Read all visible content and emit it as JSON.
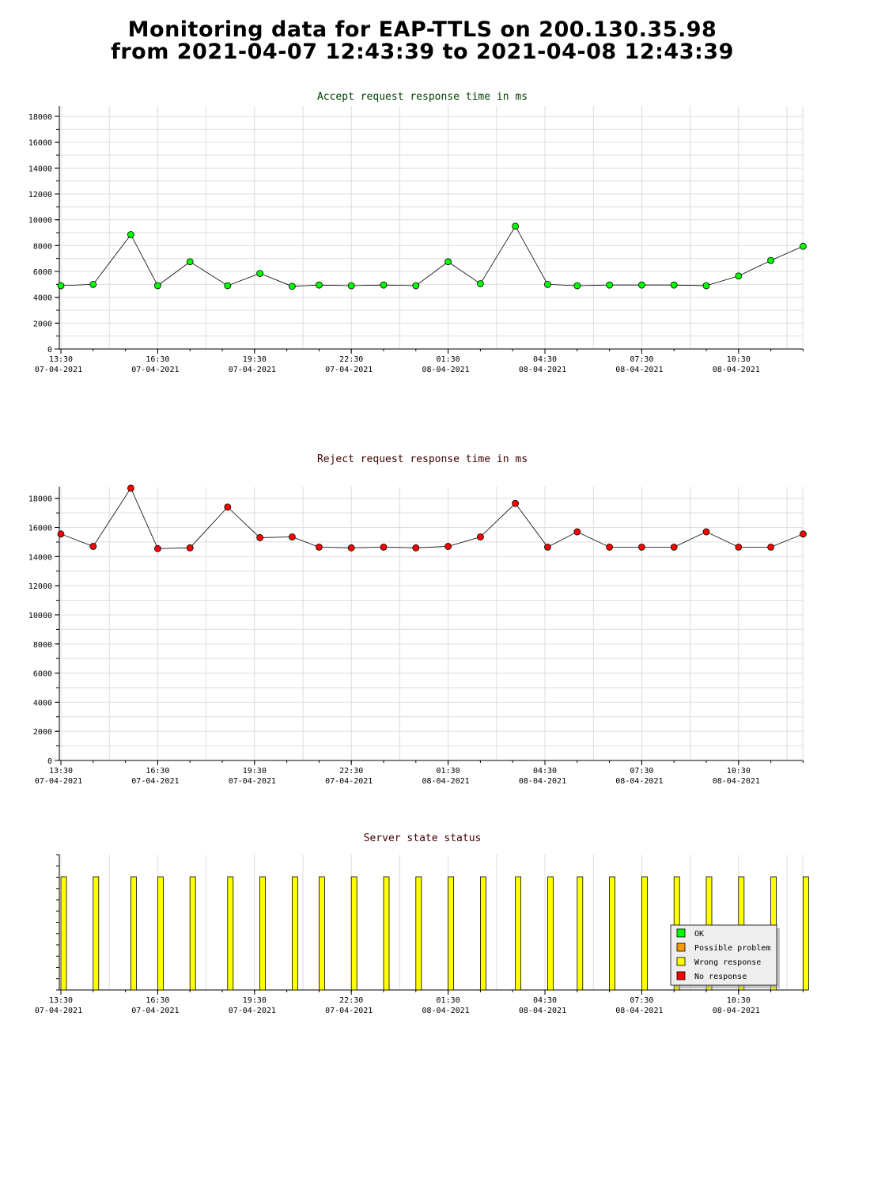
{
  "page": {
    "title_line1": "Monitoring data for EAP-TTLS on 200.130.35.98",
    "title_line2": "from 2021-04-07 12:43:39 to 2021-04-08 12:43:39"
  },
  "colors": {
    "accept_title": "#004000",
    "reject_title": "#400000",
    "status_title": "#400000",
    "accept_marker": "#00ff00",
    "reject_marker": "#ff0000",
    "grid": "#dddddd",
    "ok": "#00ff00",
    "possible_problem": "#ff9900",
    "wrong_response": "#ffff00",
    "no_response": "#ff0000"
  },
  "x_ticks": [
    {
      "time": "13:30",
      "date": "07-04-2021"
    },
    {
      "time": "16:30",
      "date": "07-04-2021"
    },
    {
      "time": "19:30",
      "date": "07-04-2021"
    },
    {
      "time": "22:30",
      "date": "07-04-2021"
    },
    {
      "time": "01:30",
      "date": "08-04-2021"
    },
    {
      "time": "04:30",
      "date": "08-04-2021"
    },
    {
      "time": "07:30",
      "date": "08-04-2021"
    },
    {
      "time": "10:30",
      "date": "08-04-2021"
    }
  ],
  "chart_data": [
    {
      "type": "line",
      "title": "Accept request response time in ms",
      "ylim": [
        0,
        18800
      ],
      "yticks": [
        0,
        2000,
        4000,
        6000,
        8000,
        10000,
        12000,
        14000,
        16000,
        18000
      ],
      "grid": true,
      "x": [
        "2021-04-07 13:30",
        "2021-04-07 14:30",
        "2021-04-07 15:40",
        "2021-04-07 16:30",
        "2021-04-07 17:30",
        "2021-04-07 18:40",
        "2021-04-07 19:40",
        "2021-04-07 20:40",
        "2021-04-07 21:30",
        "2021-04-07 22:30",
        "2021-04-07 23:30",
        "2021-04-08 00:30",
        "2021-04-08 01:30",
        "2021-04-08 02:30",
        "2021-04-08 03:35",
        "2021-04-08 04:35",
        "2021-04-08 05:30",
        "2021-04-08 06:30",
        "2021-04-08 07:30",
        "2021-04-08 08:30",
        "2021-04-08 09:30",
        "2021-04-08 10:30",
        "2021-04-08 11:30",
        "2021-04-08 12:30"
      ],
      "series": [
        {
          "values": [
            4900,
            5000,
            8850,
            4900,
            6750,
            4900,
            5850,
            4850,
            4950,
            4900,
            4950,
            4900,
            6750,
            5050,
            9500,
            5000,
            4900,
            4950,
            4950,
            4950,
            4900,
            5650,
            6850,
            7950
          ]
        }
      ]
    },
    {
      "type": "line",
      "title": "Reject request response time in ms",
      "ylim": [
        0,
        18800
      ],
      "yticks": [
        0,
        2000,
        4000,
        6000,
        8000,
        10000,
        12000,
        14000,
        16000,
        18000
      ],
      "grid": true,
      "x": [
        "2021-04-07 13:30",
        "2021-04-07 14:30",
        "2021-04-07 15:40",
        "2021-04-07 16:30",
        "2021-04-07 17:30",
        "2021-04-07 18:40",
        "2021-04-07 19:40",
        "2021-04-07 20:40",
        "2021-04-07 21:30",
        "2021-04-07 22:30",
        "2021-04-07 23:30",
        "2021-04-08 00:30",
        "2021-04-08 01:30",
        "2021-04-08 02:30",
        "2021-04-08 03:35",
        "2021-04-08 04:35",
        "2021-04-08 05:30",
        "2021-04-08 06:30",
        "2021-04-08 07:30",
        "2021-04-08 08:30",
        "2021-04-08 09:30",
        "2021-04-08 10:30",
        "2021-04-08 11:30",
        "2021-04-08 12:30"
      ],
      "series": [
        {
          "values": [
            15550,
            14700,
            18700,
            14550,
            14600,
            17400,
            15300,
            15350,
            14650,
            14600,
            14650,
            14600,
            14700,
            15350,
            17650,
            14650,
            15700,
            14650,
            14650,
            14650,
            15700,
            14650,
            14650,
            15550
          ]
        }
      ]
    },
    {
      "type": "bar",
      "title": "Server state status",
      "x": [
        "2021-04-07 13:30",
        "2021-04-07 14:30",
        "2021-04-07 15:40",
        "2021-04-07 16:30",
        "2021-04-07 17:30",
        "2021-04-07 18:40",
        "2021-04-07 19:40",
        "2021-04-07 20:40",
        "2021-04-07 21:30",
        "2021-04-07 22:30",
        "2021-04-07 23:30",
        "2021-04-08 00:30",
        "2021-04-08 01:30",
        "2021-04-08 02:30",
        "2021-04-08 03:35",
        "2021-04-08 04:35",
        "2021-04-08 05:30",
        "2021-04-08 06:30",
        "2021-04-08 07:30",
        "2021-04-08 08:30",
        "2021-04-08 09:30",
        "2021-04-08 10:30",
        "2021-04-08 11:30",
        "2021-04-08 12:30"
      ],
      "states": [
        "Wrong response",
        "Wrong response",
        "Wrong response",
        "Wrong response",
        "Wrong response",
        "Wrong response",
        "Wrong response",
        "Wrong response",
        "Wrong response",
        "Wrong response",
        "Wrong response",
        "Wrong response",
        "Wrong response",
        "Wrong response",
        "Wrong response",
        "Wrong response",
        "Wrong response",
        "Wrong response",
        "Wrong response",
        "Wrong response",
        "Wrong response",
        "Wrong response",
        "Wrong response",
        "Wrong response"
      ],
      "legend": [
        "OK",
        "Possible problem",
        "Wrong response",
        "No response"
      ],
      "legend_position": "bottom-right",
      "grid": true
    }
  ]
}
